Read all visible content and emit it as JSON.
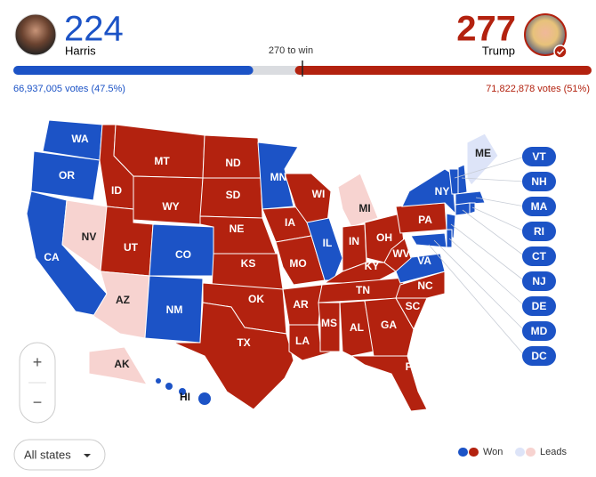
{
  "header": {
    "harris": {
      "electoral": 224,
      "name": "Harris",
      "votes": "66,937,005 votes (47.5%)",
      "color": "#1c53c6",
      "lead_color": "#dde4f8"
    },
    "trump": {
      "electoral": 277,
      "name": "Trump",
      "votes": "71,822,878 votes (51%)",
      "color": "#b3220f",
      "lead_color": "#f7d3d0"
    },
    "to_win": {
      "value": 270,
      "label": "270 to win"
    }
  },
  "states": [
    {
      "label": "WA",
      "party": "harris",
      "status": "won"
    },
    {
      "label": "OR",
      "party": "harris",
      "status": "won"
    },
    {
      "label": "CA",
      "party": "harris",
      "status": "won"
    },
    {
      "label": "NV",
      "party": "trump",
      "status": "leads"
    },
    {
      "label": "ID",
      "party": "trump",
      "status": "won"
    },
    {
      "label": "MT",
      "party": "trump",
      "status": "won"
    },
    {
      "label": "WY",
      "party": "trump",
      "status": "won"
    },
    {
      "label": "UT",
      "party": "trump",
      "status": "won"
    },
    {
      "label": "CO",
      "party": "harris",
      "status": "won"
    },
    {
      "label": "AZ",
      "party": "trump",
      "status": "leads"
    },
    {
      "label": "NM",
      "party": "harris",
      "status": "won"
    },
    {
      "label": "ND",
      "party": "trump",
      "status": "won"
    },
    {
      "label": "SD",
      "party": "trump",
      "status": "won"
    },
    {
      "label": "NE",
      "party": "trump",
      "status": "won"
    },
    {
      "label": "KS",
      "party": "trump",
      "status": "won"
    },
    {
      "label": "OK",
      "party": "trump",
      "status": "won"
    },
    {
      "label": "TX",
      "party": "trump",
      "status": "won"
    },
    {
      "label": "MN",
      "party": "harris",
      "status": "won"
    },
    {
      "label": "IA",
      "party": "trump",
      "status": "won"
    },
    {
      "label": "MO",
      "party": "trump",
      "status": "won"
    },
    {
      "label": "AR",
      "party": "trump",
      "status": "won"
    },
    {
      "label": "LA",
      "party": "trump",
      "status": "won"
    },
    {
      "label": "WI",
      "party": "trump",
      "status": "won"
    },
    {
      "label": "IL",
      "party": "harris",
      "status": "won"
    },
    {
      "label": "MI",
      "party": "trump",
      "status": "leads"
    },
    {
      "label": "IN",
      "party": "trump",
      "status": "won"
    },
    {
      "label": "OH",
      "party": "trump",
      "status": "won"
    },
    {
      "label": "KY",
      "party": "trump",
      "status": "won"
    },
    {
      "label": "TN",
      "party": "trump",
      "status": "won"
    },
    {
      "label": "MS",
      "party": "trump",
      "status": "won"
    },
    {
      "label": "AL",
      "party": "trump",
      "status": "won"
    },
    {
      "label": "GA",
      "party": "trump",
      "status": "won"
    },
    {
      "label": "FL",
      "party": "trump",
      "status": "won"
    },
    {
      "label": "SC",
      "party": "trump",
      "status": "won"
    },
    {
      "label": "NC",
      "party": "trump",
      "status": "won"
    },
    {
      "label": "VA",
      "party": "harris",
      "status": "won"
    },
    {
      "label": "WV",
      "party": "trump",
      "status": "won"
    },
    {
      "label": "PA",
      "party": "trump",
      "status": "won"
    },
    {
      "label": "NY",
      "party": "harris",
      "status": "won"
    },
    {
      "label": "ME",
      "party": "harris",
      "status": "leads"
    },
    {
      "label": "VT",
      "party": "harris",
      "status": "won"
    },
    {
      "label": "NH",
      "party": "harris",
      "status": "won"
    },
    {
      "label": "MA",
      "party": "harris",
      "status": "won"
    },
    {
      "label": "RI",
      "party": "harris",
      "status": "won"
    },
    {
      "label": "CT",
      "party": "harris",
      "status": "won"
    },
    {
      "label": "NJ",
      "party": "harris",
      "status": "won"
    },
    {
      "label": "DE",
      "party": "harris",
      "status": "won"
    },
    {
      "label": "MD",
      "party": "harris",
      "status": "won"
    },
    {
      "label": "DC",
      "party": "harris",
      "status": "won"
    },
    {
      "label": "AK",
      "party": "trump",
      "status": "leads"
    },
    {
      "label": "HI",
      "party": "harris",
      "status": "won"
    }
  ],
  "controls": {
    "zoom_in": "+",
    "zoom_out": "−",
    "filter": "All states"
  },
  "legend": {
    "won": "Won",
    "leads": "Leads"
  }
}
